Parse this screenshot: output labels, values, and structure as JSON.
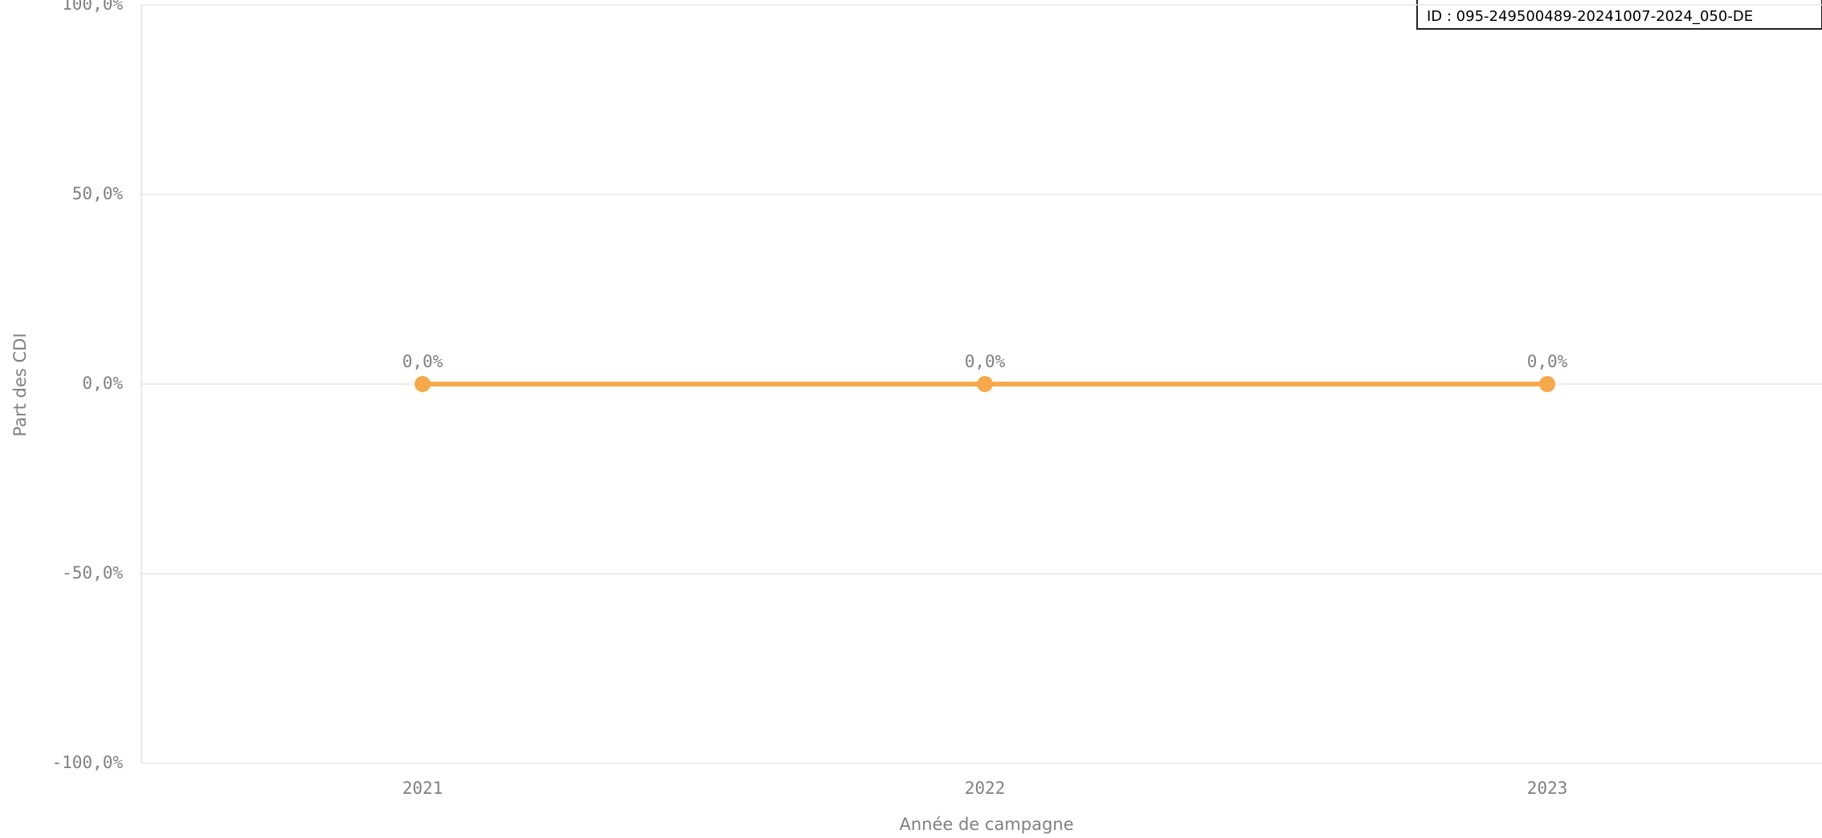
{
  "chart_data": {
    "type": "line",
    "annotation": "ID : 095-249500489-20241007-2024_050-DE",
    "x_label": "Année de campagne",
    "y_label": "Part des CDI",
    "categories": [
      "2021",
      "2022",
      "2023"
    ],
    "series": [
      {
        "color": "#f5a94a",
        "values": [
          0,
          0,
          0
        ],
        "value_labels": [
          "0,0%",
          "0,0%",
          "0,0%"
        ]
      }
    ],
    "ylim": [
      -100,
      100
    ],
    "yticks": [
      {
        "value": -100,
        "label": "-100,0%"
      },
      {
        "value": -50,
        "label": "-50,0%"
      },
      {
        "value": 0,
        "label": "0,0%"
      },
      {
        "value": 50,
        "label": "50,0%"
      },
      {
        "value": 100,
        "label": "100,0%"
      }
    ],
    "grid": true
  }
}
